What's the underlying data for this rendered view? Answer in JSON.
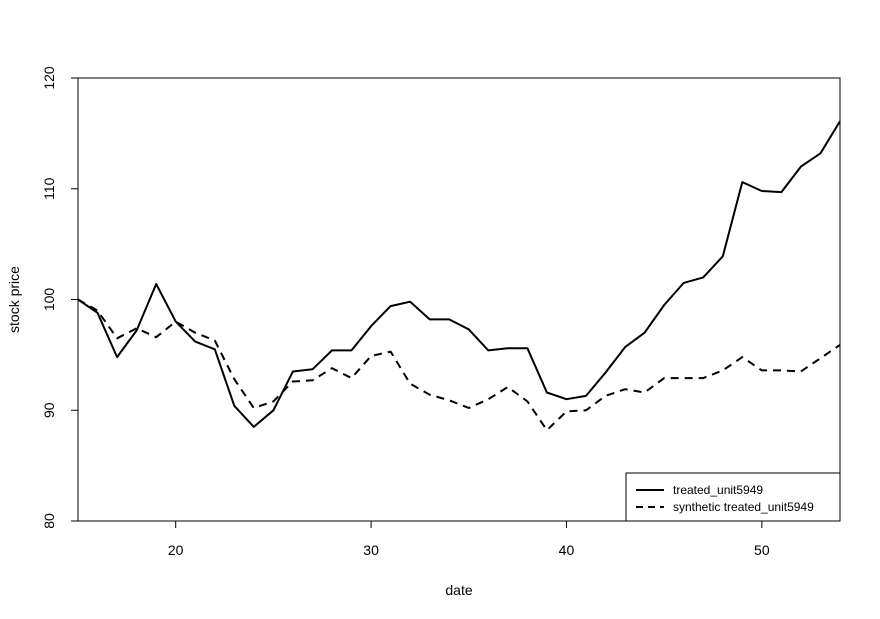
{
  "chart_data": {
    "type": "line",
    "title": "",
    "xlabel": "date",
    "ylabel": "stock price",
    "xlim": [
      15,
      54
    ],
    "ylim": [
      80,
      120
    ],
    "x_ticks": [
      20,
      30,
      40,
      50
    ],
    "y_ticks": [
      80,
      90,
      100,
      110,
      120
    ],
    "grid": false,
    "legend_position": "bottom-right",
    "x": [
      15,
      16,
      17,
      18,
      19,
      20,
      21,
      22,
      23,
      24,
      25,
      26,
      27,
      28,
      29,
      30,
      31,
      32,
      33,
      34,
      35,
      36,
      37,
      38,
      39,
      40,
      41,
      42,
      43,
      44,
      45,
      46,
      47,
      48,
      49,
      50,
      51,
      52,
      53,
      54
    ],
    "series": [
      {
        "name": "treated_unit5949",
        "style": "solid",
        "color": "#000000",
        "values": [
          100.0,
          98.8,
          94.8,
          97.2,
          101.4,
          98.0,
          96.2,
          95.5,
          90.4,
          88.5,
          90.0,
          93.5,
          93.7,
          95.4,
          95.4,
          97.6,
          99.4,
          99.8,
          98.2,
          98.2,
          97.3,
          95.4,
          95.6,
          95.6,
          91.6,
          91.0,
          91.3,
          93.4,
          95.7,
          97.0,
          99.5,
          101.5,
          102.0,
          103.9,
          110.6,
          109.8,
          109.7,
          112.0,
          113.2,
          116.1
        ]
      },
      {
        "name": "synthetic treated_unit5949",
        "style": "dashed",
        "color": "#000000",
        "values": [
          100.0,
          99.0,
          96.5,
          97.4,
          96.6,
          98.0,
          97.0,
          96.3,
          92.8,
          90.2,
          90.8,
          92.6,
          92.7,
          93.8,
          92.9,
          94.9,
          95.3,
          92.4,
          91.4,
          90.9,
          90.2,
          91.0,
          92.1,
          90.8,
          88.2,
          89.9,
          90.0,
          91.3,
          91.9,
          91.6,
          92.9,
          92.9,
          92.9,
          93.6,
          94.8,
          93.6,
          93.6,
          93.5,
          94.7,
          95.9
        ]
      }
    ]
  }
}
